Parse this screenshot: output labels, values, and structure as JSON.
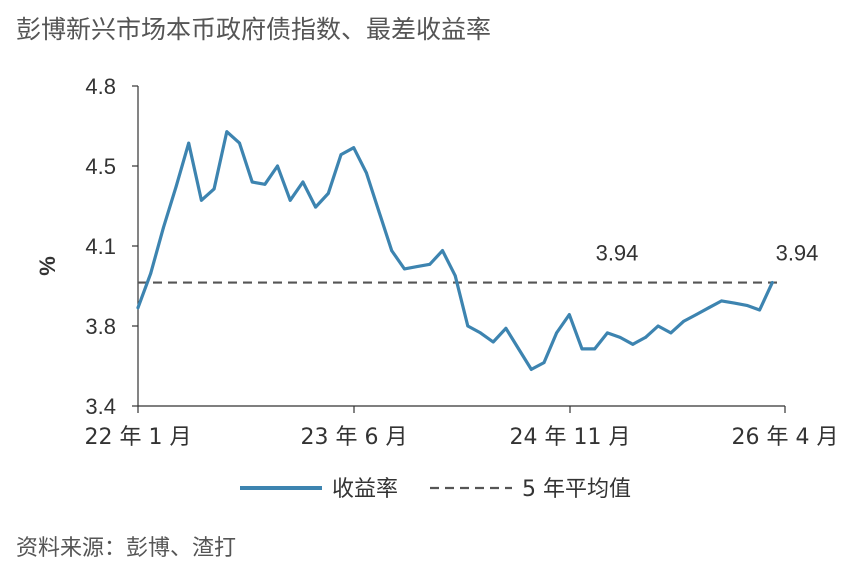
{
  "title": "彭博新兴市场本币政府债指数、最差收益率",
  "source": "资料来源：彭博、渣打",
  "colors": {
    "series_line": "#3d84b0",
    "average_line": "#555555",
    "axis": "#333333",
    "text": "#333333"
  },
  "chart_data": {
    "type": "line",
    "title": "彭博新兴市场本币政府债指数、最差收益率",
    "ylabel": "%",
    "xlabel": "",
    "ylim": [
      3.4,
      4.8
    ],
    "yticks": [
      "3.4",
      "3.8",
      "4.1",
      "4.5",
      "4.8"
    ],
    "yticks_values": [
      3.4,
      3.75,
      4.1,
      4.45,
      4.8
    ],
    "xticks": [
      "22 年 1 月",
      "23 年 6 月",
      "24 年 11 月",
      "26 年 4 月"
    ],
    "grid": false,
    "legend_position": "bottom",
    "series": [
      {
        "name": "收益率",
        "style": "solid",
        "end_label": "3.94",
        "x": [
          "2022-01",
          "2022-02",
          "2022-03",
          "2022-04",
          "2022-05",
          "2022-06",
          "2022-07",
          "2022-08",
          "2022-09",
          "2022-10",
          "2022-11",
          "2022-12",
          "2023-01",
          "2023-02",
          "2023-03",
          "2023-04",
          "2023-05",
          "2023-06",
          "2023-07",
          "2023-08",
          "2023-09",
          "2023-10",
          "2023-11",
          "2023-12",
          "2024-01",
          "2024-02",
          "2024-03",
          "2024-04",
          "2024-05",
          "2024-06",
          "2024-07",
          "2024-08",
          "2024-09",
          "2024-10",
          "2024-11",
          "2024-12",
          "2025-01",
          "2025-02",
          "2025-03",
          "2025-04",
          "2025-05",
          "2025-06",
          "2025-07",
          "2025-08",
          "2025-09",
          "2025-10",
          "2025-11",
          "2025-12",
          "2026-01",
          "2026-02",
          "2026-03"
        ],
        "values": [
          3.83,
          3.98,
          4.18,
          4.36,
          4.55,
          4.3,
          4.35,
          4.6,
          4.55,
          4.38,
          4.37,
          4.45,
          4.3,
          4.38,
          4.27,
          4.33,
          4.5,
          4.53,
          4.42,
          4.25,
          4.08,
          4.0,
          4.01,
          4.02,
          4.08,
          3.97,
          3.75,
          3.72,
          3.68,
          3.74,
          3.65,
          3.56,
          3.59,
          3.72,
          3.8,
          3.65,
          3.65,
          3.72,
          3.7,
          3.67,
          3.7,
          3.75,
          3.72,
          3.77,
          3.8,
          3.83,
          3.86,
          3.85,
          3.84,
          3.82,
          3.94
        ]
      },
      {
        "name": "5 年平均值",
        "style": "dashed",
        "end_label": "3.94",
        "value": 3.94
      }
    ]
  }
}
